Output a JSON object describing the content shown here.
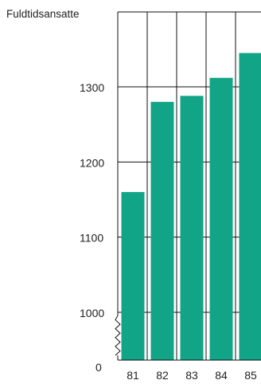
{
  "chart_data": {
    "type": "bar",
    "ylabel": "Fuldtidsansatte",
    "categories": [
      "81",
      "82",
      "83",
      "84",
      "85"
    ],
    "values": [
      1160,
      1280,
      1288,
      1312,
      1345
    ],
    "yticks": [
      {
        "value": 1000,
        "label": "1000"
      },
      {
        "value": 1100,
        "label": "1100"
      },
      {
        "value": 1200,
        "label": "1200"
      },
      {
        "value": 1300,
        "label": "1300"
      }
    ],
    "baseline_label": "0",
    "y_axis_break": true,
    "ylim": [
      950,
      1400
    ],
    "grid": true,
    "bar_color": "#12a486",
    "grid_color": "#111111"
  }
}
